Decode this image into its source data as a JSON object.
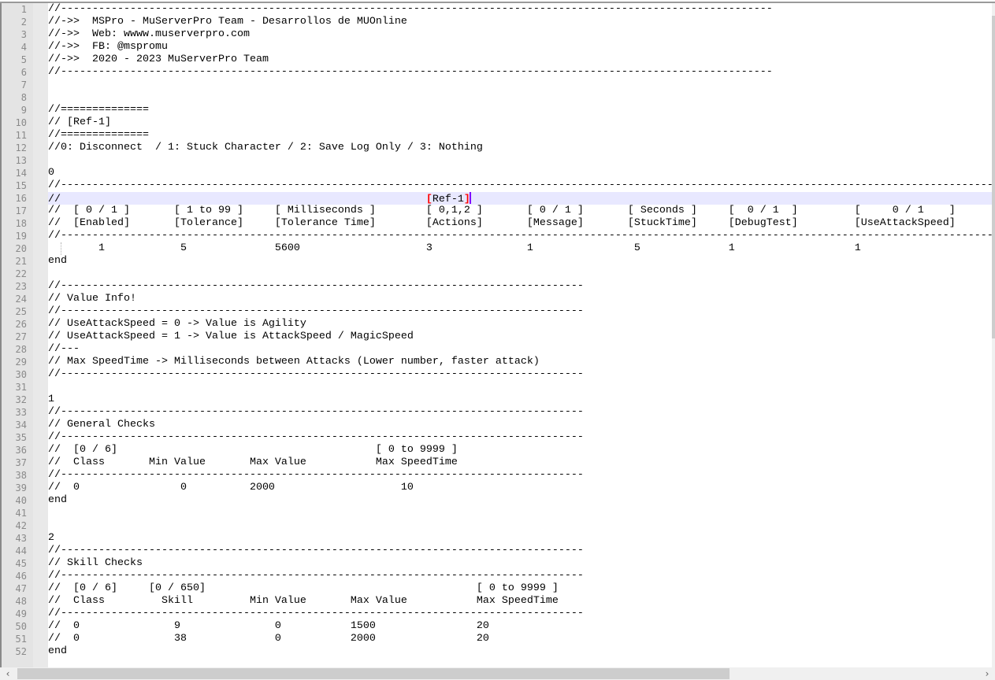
{
  "editor": {
    "lines": [
      "//-----------------------------------------------------------------------------------------------------------------",
      "//->>  MSPro - MuServerPro Team - Desarrollos de MUOnline",
      "//->>  Web: wwww.muserverpro.com",
      "//->>  FB: @mspromu",
      "//->>  2020 - 2023 MuServerPro Team",
      "//-----------------------------------------------------------------------------------------------------------------",
      "",
      "",
      "//==============",
      "// [Ref-1]",
      "//==============",
      "//0: Disconnect  / 1: Stuck Character / 2: Save Log Only / 3: Nothing",
      "",
      "0",
      "//----------------------------------------------------------------------------------------------------------------------------------------------------------------",
      "//",
      "//  [ 0 / 1 ]       [ 1 to 99 ]     [ Milliseconds ]        [ 0,1,2 ]       [ 0 / 1 ]       [ Seconds ]     [  0 / 1  ]         [     0 / 1    ]",
      "//  [Enabled]       [Tolerance]     [Tolerance Time]        [Actions]       [Message]       [StuckTime]     [DebugTest]         [UseAttackSpeed]",
      "//----------------------------------------------------------------------------------------------------------------------------------------------------------------",
      "        1            5              5600                    3               1                5              1                   1",
      "end",
      "",
      "//-----------------------------------------------------------------------------------",
      "// Value Info!",
      "//-----------------------------------------------------------------------------------",
      "// UseAttackSpeed = 0 -> Value is Agility",
      "// UseAttackSpeed = 1 -> Value is AttackSpeed / MagicSpeed",
      "//---",
      "// Max SpeedTime -> Milliseconds between Attacks (Lower number, faster attack)",
      "//-----------------------------------------------------------------------------------",
      "",
      "1",
      "//-----------------------------------------------------------------------------------",
      "// General Checks",
      "//-----------------------------------------------------------------------------------",
      "//  [0 / 6]                                         [ 0 to 9999 ]",
      "//  Class       Min Value       Max Value           Max SpeedTime",
      "//-----------------------------------------------------------------------------------",
      "//  0                0          2000                    10",
      "end",
      "",
      "",
      "2",
      "//-----------------------------------------------------------------------------------",
      "// Skill Checks",
      "//-----------------------------------------------------------------------------------",
      "//  [0 / 6]     [0 / 650]                                           [ 0 to 9999 ]",
      "//  Class         Skill         Min Value       Max Value           Max SpeedTime",
      "//-----------------------------------------------------------------------------------",
      "//  0               9               0           1500                20",
      "//  0               38              0           2000                20",
      "end"
    ],
    "current_line": 16,
    "current_line_parts": {
      "prefix": "//                                                          ",
      "open_brace": "[",
      "inner": "Ref-1",
      "close_brace": "]"
    },
    "colors": {
      "current_line_bg": "#e8e8ff",
      "brace_match": "#ff0000",
      "caret": "#8000ff"
    }
  },
  "scrollbars": {
    "left_arrow": "‹",
    "right_arrow": "›"
  }
}
